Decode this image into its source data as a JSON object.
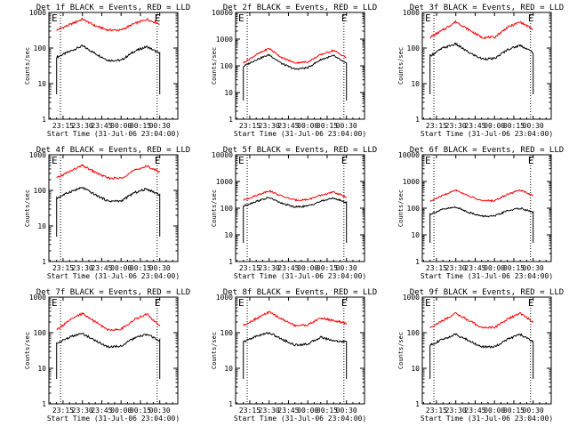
{
  "figure": {
    "ylabel": "Counts/sec",
    "xlabel": "Start Time (31-Jul-06 23:04:00)",
    "marker": "E",
    "xticks": [
      "23:15",
      "23:30",
      "23:45",
      "00:00",
      "00:15",
      "00:30"
    ],
    "yticks": [
      "1",
      "10",
      "100",
      "1000"
    ]
  },
  "chart_data": [
    {
      "type": "line",
      "title": "Det 1f BLACK = Events, RED = LLD",
      "xlabel": "Start Time (31-Jul-06 23:04:00)",
      "ylabel": "Counts/sec",
      "ylim": [
        1,
        1000
      ],
      "yscale": "log",
      "x": [
        "23:10",
        "23:20",
        "23:30",
        "23:40",
        "23:50",
        "00:00",
        "00:10",
        "00:20",
        "00:30"
      ],
      "series": [
        {
          "name": "BLACK = Events",
          "color": "#000000",
          "values": [
            55,
            80,
            115,
            70,
            45,
            45,
            80,
            110,
            70
          ]
        },
        {
          "name": "RED = LLD",
          "color": "#ff0000",
          "values": [
            320,
            450,
            650,
            420,
            320,
            320,
            480,
            640,
            480
          ]
        }
      ]
    },
    {
      "type": "line",
      "title": "Det 2f BLACK = Events, RED = LLD",
      "xlabel": "Start Time (31-Jul-06 23:04:00)",
      "ylabel": "Counts/sec",
      "ylim": [
        1,
        10000
      ],
      "yscale": "log",
      "x": [
        "23:10",
        "23:20",
        "23:30",
        "23:40",
        "23:50",
        "00:00",
        "00:10",
        "00:20",
        "00:30"
      ],
      "series": [
        {
          "name": "BLACK = Events",
          "color": "#000000",
          "values": [
            95,
            170,
            260,
            120,
            75,
            85,
            170,
            240,
            120
          ]
        },
        {
          "name": "RED = LLD",
          "color": "#ff0000",
          "values": [
            130,
            260,
            450,
            200,
            130,
            140,
            260,
            380,
            200
          ]
        }
      ]
    },
    {
      "type": "line",
      "title": "Det 3f BLACK = Events, RED = LLD",
      "xlabel": "Start Time (31-Jul-06 23:04:00)",
      "ylabel": "Counts/sec",
      "ylim": [
        1,
        1000
      ],
      "yscale": "log",
      "x": [
        "23:10",
        "23:20",
        "23:30",
        "23:40",
        "23:50",
        "00:00",
        "00:10",
        "00:20",
        "00:30"
      ],
      "series": [
        {
          "name": "BLACK = Events",
          "color": "#000000",
          "values": [
            60,
            100,
            130,
            75,
            50,
            50,
            90,
            120,
            75
          ]
        },
        {
          "name": "RED = LLD",
          "color": "#ff0000",
          "values": [
            200,
            320,
            550,
            330,
            200,
            200,
            380,
            540,
            330
          ]
        }
      ]
    },
    {
      "type": "line",
      "title": "Det 4f BLACK = Events, RED = LLD",
      "xlabel": "Start Time (31-Jul-06 23:04:00)",
      "ylabel": "Counts/sec",
      "ylim": [
        1,
        1000
      ],
      "yscale": "log",
      "x": [
        "23:10",
        "23:20",
        "23:30",
        "23:40",
        "23:50",
        "00:00",
        "00:10",
        "00:20",
        "00:30"
      ],
      "series": [
        {
          "name": "BLACK = Events",
          "color": "#000000",
          "values": [
            60,
            90,
            120,
            75,
            50,
            50,
            85,
            110,
            75
          ]
        },
        {
          "name": "RED = LLD",
          "color": "#ff0000",
          "values": [
            220,
            340,
            500,
            320,
            220,
            220,
            360,
            480,
            330
          ]
        }
      ]
    },
    {
      "type": "line",
      "title": "Det 5f BLACK = Events, RED = LLD",
      "xlabel": "Start Time (31-Jul-06 23:04:00)",
      "ylabel": "Counts/sec",
      "ylim": [
        1,
        10000
      ],
      "yscale": "log",
      "x": [
        "23:10",
        "23:20",
        "23:30",
        "23:40",
        "23:50",
        "00:00",
        "00:10",
        "00:20",
        "00:30"
      ],
      "series": [
        {
          "name": "BLACK = Events",
          "color": "#000000",
          "values": [
            120,
            180,
            250,
            150,
            110,
            120,
            180,
            240,
            160
          ]
        },
        {
          "name": "RED = LLD",
          "color": "#ff0000",
          "values": [
            200,
            300,
            450,
            280,
            200,
            210,
            300,
            400,
            260
          ]
        }
      ]
    },
    {
      "type": "line",
      "title": "Det 6f BLACK = Events, RED = LLD",
      "xlabel": "Start Time (31-Jul-06 23:04:00)",
      "ylabel": "Counts/sec",
      "ylim": [
        1,
        10000
      ],
      "yscale": "log",
      "x": [
        "23:10",
        "23:20",
        "23:30",
        "23:40",
        "23:50",
        "00:00",
        "00:10",
        "00:20",
        "00:30"
      ],
      "series": [
        {
          "name": "BLACK = Events",
          "color": "#000000",
          "values": [
            60,
            90,
            110,
            70,
            50,
            50,
            80,
            100,
            70
          ]
        },
        {
          "name": "RED = LLD",
          "color": "#ff0000",
          "values": [
            180,
            300,
            480,
            290,
            190,
            190,
            330,
            480,
            300
          ]
        }
      ]
    },
    {
      "type": "line",
      "title": "Det 7f BLACK = Events, RED = LLD",
      "xlabel": "Start Time (31-Jul-06 23:04:00)",
      "ylabel": "Counts/sec",
      "ylim": [
        1,
        1000
      ],
      "yscale": "log",
      "x": [
        "23:10",
        "23:20",
        "23:30",
        "23:40",
        "23:50",
        "00:00",
        "00:10",
        "00:20",
        "00:30"
      ],
      "series": [
        {
          "name": "BLACK = Events",
          "color": "#000000",
          "values": [
            50,
            75,
            95,
            60,
            40,
            42,
            70,
            90,
            60
          ]
        },
        {
          "name": "RED = LLD",
          "color": "#ff0000",
          "values": [
            120,
            220,
            350,
            200,
            120,
            125,
            230,
            340,
            150
          ]
        }
      ]
    },
    {
      "type": "line",
      "title": "Det 8f BLACK = Events, RED = LLD",
      "xlabel": "Start Time (31-Jul-06 23:04:00)",
      "ylabel": "Counts/sec",
      "ylim": [
        1,
        1000
      ],
      "yscale": "log",
      "x": [
        "23:10",
        "23:20",
        "23:30",
        "23:40",
        "23:50",
        "00:00",
        "00:10",
        "00:20",
        "00:30"
      ],
      "series": [
        {
          "name": "BLACK = Events",
          "color": "#000000",
          "values": [
            55,
            80,
            100,
            65,
            45,
            48,
            75,
            60,
            55
          ]
        },
        {
          "name": "RED = LLD",
          "color": "#ff0000",
          "values": [
            160,
            250,
            380,
            240,
            160,
            165,
            260,
            220,
            180
          ]
        }
      ]
    },
    {
      "type": "line",
      "title": "Det 9f BLACK = Events, RED = LLD",
      "xlabel": "Start Time (31-Jul-06 23:04:00)",
      "ylabel": "Counts/sec",
      "ylim": [
        1,
        1000
      ],
      "yscale": "log",
      "x": [
        "23:10",
        "23:20",
        "23:30",
        "23:40",
        "23:50",
        "00:00",
        "00:10",
        "00:20",
        "00:30"
      ],
      "series": [
        {
          "name": "BLACK = Events",
          "color": "#000000",
          "values": [
            45,
            65,
            90,
            60,
            40,
            40,
            65,
            90,
            55
          ]
        },
        {
          "name": "RED = LLD",
          "color": "#ff0000",
          "values": [
            140,
            220,
            350,
            220,
            140,
            140,
            240,
            350,
            200
          ]
        }
      ]
    }
  ]
}
